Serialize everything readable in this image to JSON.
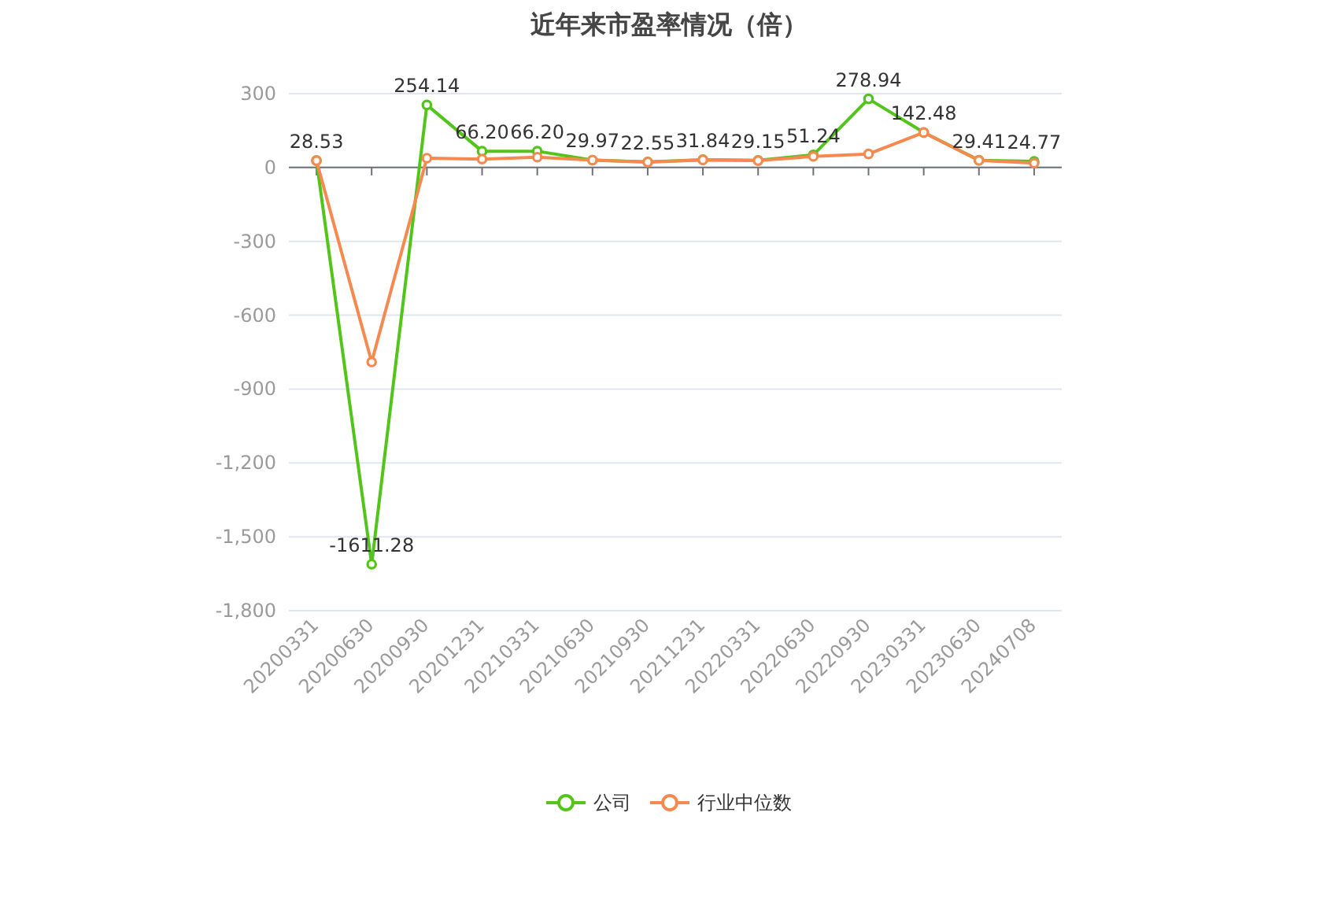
{
  "chart_data": {
    "type": "line",
    "title": "近年来市盈率情况（倍）",
    "categories": [
      "20200331",
      "20200630",
      "20200930",
      "20201231",
      "20210331",
      "20210630",
      "20210930",
      "20211231",
      "20220331",
      "20220630",
      "20220930",
      "20230331",
      "20230630",
      "20240708"
    ],
    "series": [
      {
        "name": "公司",
        "color": "#52c41a",
        "values": [
          28.53,
          -1611.28,
          254.14,
          66.2,
          66.2,
          29.97,
          22.55,
          31.84,
          29.15,
          51.24,
          278.94,
          142.48,
          29.41,
          24.77
        ],
        "value_labels": [
          "28.53",
          "-1611.28",
          "254.14",
          "66.20",
          "66.20",
          "29.97",
          "22.55",
          "31.84",
          "29.15",
          "51.24",
          "278.94",
          "142.48",
          "29.41",
          "24.77"
        ]
      },
      {
        "name": "行业中位数",
        "color": "#f5894f",
        "values": [
          28,
          -790,
          38,
          34,
          42,
          30,
          22,
          31,
          28,
          45,
          55,
          142,
          29,
          18
        ]
      }
    ],
    "ylim": [
      -1800,
      300
    ],
    "yticks": [
      {
        "value": -1800,
        "label": "-1,800"
      },
      {
        "value": -1500,
        "label": "-1,500"
      },
      {
        "value": -1200,
        "label": "-1,200"
      },
      {
        "value": -900,
        "label": "-900"
      },
      {
        "value": -600,
        "label": "-600"
      },
      {
        "value": -300,
        "label": "-300"
      },
      0,
      300
    ],
    "grid": "y",
    "legend": "bottom",
    "marker": "circle"
  }
}
